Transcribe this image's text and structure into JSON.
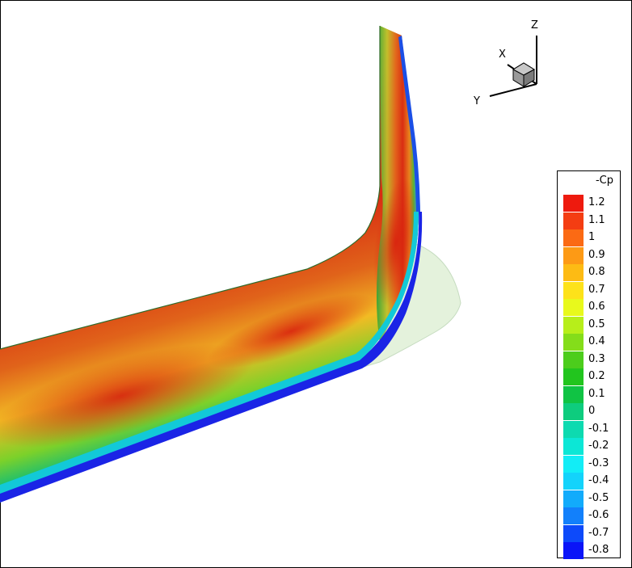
{
  "axes": {
    "x_label": "X",
    "y_label": "Y",
    "z_label": "Z"
  },
  "legend": {
    "title": "-Cp",
    "levels": [
      {
        "label": "1.2",
        "color": "#ee1a0e"
      },
      {
        "label": "1.1",
        "color": "#f43d12"
      },
      {
        "label": "1",
        "color": "#fb6a14"
      },
      {
        "label": "0.9",
        "color": "#fd9a15"
      },
      {
        "label": "0.8",
        "color": "#fdbb14"
      },
      {
        "label": "0.7",
        "color": "#fde21a"
      },
      {
        "label": "0.6",
        "color": "#e8f91c"
      },
      {
        "label": "0.5",
        "color": "#b7ee1a"
      },
      {
        "label": "0.4",
        "color": "#84dd1a"
      },
      {
        "label": "0.3",
        "color": "#4ccd1c"
      },
      {
        "label": "0.2",
        "color": "#22c51e"
      },
      {
        "label": "0.1",
        "color": "#10c344"
      },
      {
        "label": "0",
        "color": "#0ecc7e"
      },
      {
        "label": "-0.1",
        "color": "#0ddab0"
      },
      {
        "label": "-0.2",
        "color": "#0ce7d6"
      },
      {
        "label": "-0.3",
        "color": "#12edf6"
      },
      {
        "label": "-0.4",
        "color": "#13d3fb"
      },
      {
        "label": "-0.5",
        "color": "#12abfb"
      },
      {
        "label": "-0.6",
        "color": "#1280fb"
      },
      {
        "label": "-0.7",
        "color": "#0d4afa"
      },
      {
        "label": "-0.8",
        "color": "#0a14f8"
      }
    ]
  }
}
